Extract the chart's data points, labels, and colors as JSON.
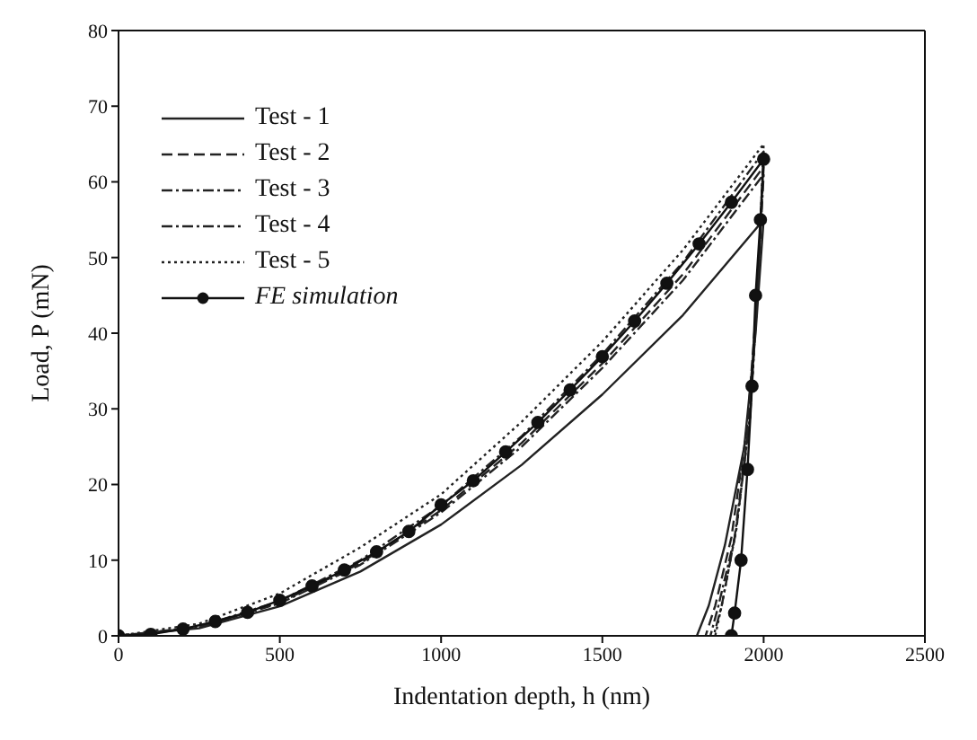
{
  "chart_data": {
    "type": "line",
    "xlabel": "Indentation depth, h (nm)",
    "ylabel": "Load, P (mN)",
    "xlim": [
      0,
      2500
    ],
    "ylim": [
      0,
      80
    ],
    "xticks": [
      0,
      500,
      1000,
      1500,
      2000,
      2500
    ],
    "yticks": [
      0,
      10,
      20,
      30,
      40,
      50,
      60,
      70,
      80
    ],
    "legend": "top left",
    "series": [
      {
        "name": "Test - 1",
        "color": "#222222",
        "line_style": "solid",
        "marker": "none",
        "x": [
          0,
          250,
          500,
          750,
          1000,
          1250,
          1500,
          1750,
          2000,
          1975,
          1940,
          1880,
          1830,
          1793
        ],
        "values": [
          0,
          1.0,
          3.9,
          8.5,
          14.7,
          22.6,
          31.9,
          42.4,
          55,
          40,
          25,
          12,
          4,
          0
        ]
      },
      {
        "name": "Test - 2",
        "color": "#222222",
        "line_style": "dashed",
        "marker": "none",
        "x": [
          0,
          250,
          500,
          750,
          1000,
          1250,
          1500,
          1750,
          2000,
          1980,
          1950,
          1900,
          1850,
          1820
        ],
        "values": [
          0,
          1.1,
          4.4,
          9.6,
          16.6,
          25.5,
          36,
          47.8,
          62,
          45,
          28,
          13,
          4,
          0
        ]
      },
      {
        "name": "Test - 3",
        "color": "#222222",
        "line_style": "dashdot",
        "marker": "none",
        "x": [
          0,
          250,
          500,
          750,
          1000,
          1250,
          1500,
          1750,
          2000,
          1980,
          1955,
          1910,
          1860,
          1835
        ],
        "values": [
          0,
          1.1,
          4.3,
          9.4,
          16.3,
          25,
          35.4,
          47,
          61,
          45,
          28,
          13,
          4,
          0
        ]
      },
      {
        "name": "Test - 4",
        "color": "#222222",
        "line_style": "dashdot",
        "marker": "none",
        "x": [
          0,
          250,
          500,
          750,
          1000,
          1250,
          1500,
          1750,
          2000,
          1982,
          1958,
          1915,
          1870,
          1845
        ],
        "values": [
          0,
          1.2,
          4.6,
          10,
          17.2,
          26.4,
          37.2,
          49.4,
          64,
          46,
          29,
          14,
          4,
          0
        ]
      },
      {
        "name": "Test - 5",
        "color": "#222222",
        "line_style": "dotted",
        "marker": "none",
        "x": [
          0,
          250,
          500,
          750,
          1000,
          1250,
          1500,
          1750,
          2000,
          1982,
          1958,
          1915,
          1870,
          1850
        ],
        "values": [
          0,
          1.6,
          5.6,
          11.7,
          18.7,
          28.3,
          38.9,
          51,
          65,
          46,
          29,
          14,
          4,
          0
        ]
      },
      {
        "name": "FE simulation",
        "color": "#111111",
        "line_style": "solid",
        "marker": "circle",
        "x": [
          0,
          100,
          200,
          300,
          400,
          500,
          600,
          700,
          800,
          900,
          1000,
          1100,
          1200,
          1300,
          1400,
          1500,
          1600,
          1700,
          1800,
          1900,
          2000,
          1990,
          1975,
          1964,
          1950,
          1930,
          1910,
          1900
        ],
        "values": [
          0,
          0.2,
          0.9,
          1.9,
          3.1,
          4.7,
          6.6,
          8.7,
          11.1,
          13.8,
          17.3,
          20.5,
          24.3,
          28.2,
          32.5,
          36.9,
          41.6,
          46.6,
          51.8,
          57.3,
          63,
          55,
          45,
          33,
          22,
          10,
          3,
          0
        ]
      }
    ]
  }
}
